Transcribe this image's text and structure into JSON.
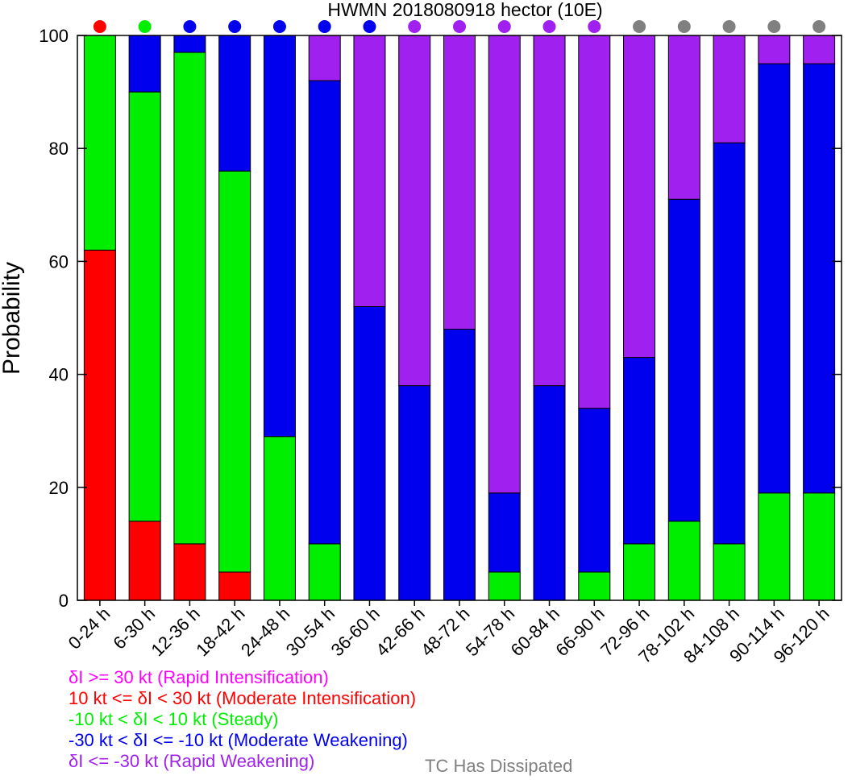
{
  "chart_data": {
    "type": "bar",
    "stacked": true,
    "title": "HWMN 2018080918 hector (10E)",
    "xlabel": "",
    "ylabel": "Probability",
    "ylim": [
      0,
      100
    ],
    "yticks": [
      0,
      20,
      40,
      60,
      80,
      100
    ],
    "categories": [
      "0-24 h",
      "6-30 h",
      "12-36 h",
      "18-42 h",
      "24-48 h",
      "30-54 h",
      "36-60 h",
      "42-66 h",
      "48-72 h",
      "54-78 h",
      "60-84 h",
      "66-90 h",
      "72-96 h",
      "78-102 h",
      "84-108 h",
      "90-114 h",
      "96-120 h"
    ],
    "series": [
      {
        "key": "RI",
        "color": "#ff00ff",
        "values": [
          0,
          0,
          0,
          0,
          0,
          0,
          0,
          0,
          0,
          0,
          0,
          0,
          0,
          0,
          0,
          0,
          0
        ]
      },
      {
        "key": "MI",
        "color": "#ff0000",
        "values": [
          62,
          14,
          10,
          5,
          0,
          0,
          0,
          0,
          0,
          0,
          0,
          0,
          0,
          0,
          0,
          0,
          0
        ]
      },
      {
        "key": "ST",
        "color": "#00ee00",
        "values": [
          38,
          76,
          87,
          71,
          29,
          10,
          0,
          0,
          0,
          5,
          0,
          5,
          10,
          14,
          10,
          19,
          19
        ]
      },
      {
        "key": "MW",
        "color": "#0000ee",
        "values": [
          0,
          10,
          3,
          24,
          71,
          82,
          52,
          38,
          48,
          14,
          38,
          29,
          33,
          57,
          71,
          76,
          76
        ]
      },
      {
        "key": "RW",
        "color": "#a020f0",
        "values": [
          0,
          0,
          0,
          0,
          0,
          8,
          48,
          62,
          52,
          81,
          62,
          66,
          57,
          29,
          19,
          5,
          5
        ]
      }
    ],
    "dot_colors": [
      "#ff0000",
      "#00ee00",
      "#0000ee",
      "#0000ee",
      "#0000ee",
      "#0000ee",
      "#0000ee",
      "#a020f0",
      "#a020f0",
      "#a020f0",
      "#a020f0",
      "#a020f0",
      "#808080",
      "#808080",
      "#808080",
      "#808080",
      "#808080"
    ],
    "legend": [
      {
        "label": "δI >= 30 kt (Rapid Intensification)",
        "color": "#ff00ff"
      },
      {
        "label": "10 kt <= δI < 30 kt (Moderate Intensification)",
        "color": "#ff0000"
      },
      {
        "label": "-10 kt < δI < 10 kt (Steady)",
        "color": "#00ee00"
      },
      {
        "label": "-30 kt < δI <= -10 kt (Moderate Weakening)",
        "color": "#0000ee"
      },
      {
        "label": "δI <= -30 kt (Rapid Weakening)",
        "color": "#a020f0"
      }
    ],
    "dissipated_label": "TC Has Dissipated",
    "dissipated_color": "#808080",
    "grid": false
  }
}
